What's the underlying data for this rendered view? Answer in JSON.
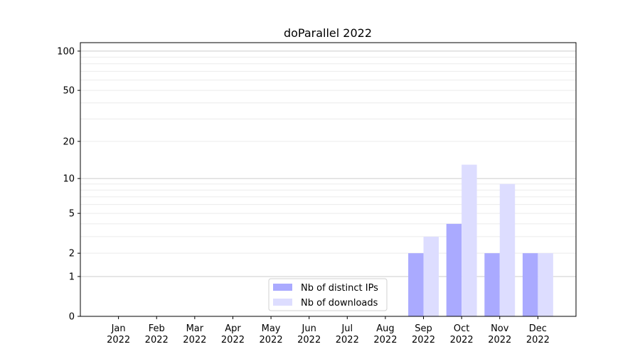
{
  "chart_data": {
    "type": "bar",
    "title": "doParallel 2022",
    "xlabel": "",
    "ylabel": "",
    "y_scale": "log10(1+y)",
    "ylim": [
      0,
      116
    ],
    "yticks": [
      0,
      1,
      2,
      5,
      10,
      20,
      50,
      100
    ],
    "grid": true,
    "legend_placement": "lower-center",
    "categories": [
      "Jan\n2022",
      "Feb\n2022",
      "Mar\n2022",
      "Apr\n2022",
      "May\n2022",
      "Jun\n2022",
      "Jul\n2022",
      "Aug\n2022",
      "Sep\n2022",
      "Oct\n2022",
      "Nov\n2022",
      "Dec\n2022"
    ],
    "series": [
      {
        "name": "Nb of distinct IPs",
        "color": "#aaaaff",
        "values": [
          0,
          0,
          0,
          0,
          0,
          0,
          0,
          0,
          2,
          4,
          2,
          2
        ]
      },
      {
        "name": "Nb of downloads",
        "color": "#ddddff",
        "values": [
          0,
          0,
          0,
          0,
          0,
          0,
          0,
          0,
          3,
          13,
          9,
          2
        ]
      }
    ]
  }
}
